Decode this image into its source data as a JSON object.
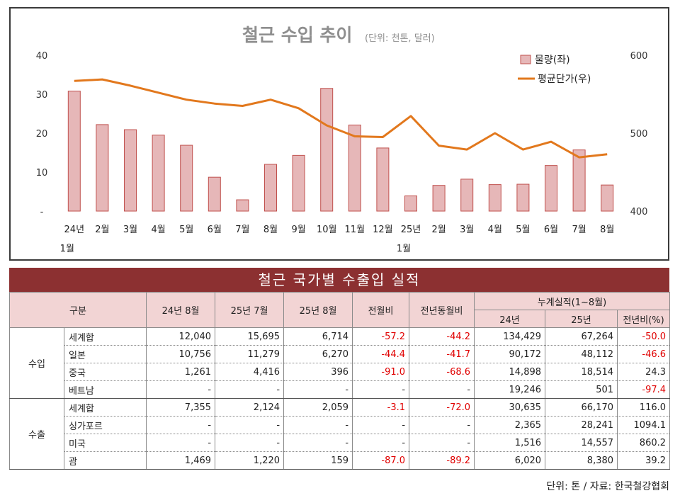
{
  "chart_data": {
    "type": "bar+line",
    "title": "철근 수입 추이",
    "subtitle": "(단위: 천톤, 달러)",
    "categories": [
      "24년\n1월",
      "2월",
      "3월",
      "4월",
      "5월",
      "6월",
      "7월",
      "8월",
      "9월",
      "10월",
      "11월",
      "12월",
      "25년\n1월",
      "2월",
      "3월",
      "4월",
      "5월",
      "6월",
      "7월",
      "8월"
    ],
    "series": [
      {
        "name": "물량(좌)",
        "type": "bar",
        "axis": "left",
        "values": [
          30.8,
          22.2,
          20.9,
          19.5,
          16.9,
          8.7,
          2.9,
          12.0,
          14.3,
          31.5,
          22.1,
          16.2,
          3.9,
          6.6,
          8.2,
          6.8,
          6.9,
          11.7,
          15.7,
          6.7
        ]
      },
      {
        "name": "평균단가(우)",
        "type": "line",
        "axis": "right",
        "values": [
          567,
          569,
          561,
          552,
          543,
          538,
          535,
          543,
          532,
          510,
          496,
          495,
          522,
          484,
          479,
          500,
          479,
          489,
          469,
          473
        ]
      }
    ],
    "y_left": {
      "range": [
        0,
        40
      ],
      "ticks": [
        "-",
        "10",
        "20",
        "30",
        "40"
      ]
    },
    "y_right": {
      "range": [
        400,
        600
      ],
      "ticks": [
        "400",
        "500",
        "600"
      ]
    },
    "legend_position": "top-right",
    "grid": false,
    "colors": {
      "bar_fill": "#e6b7b8",
      "bar_stroke": "#c0504d",
      "line": "#e2781d"
    }
  },
  "table": {
    "title": "철근 국가별 수출입 실적",
    "headers": {
      "category": "구분",
      "c1": "24년 8월",
      "c2": "25년 7월",
      "c3": "25년 8월",
      "c4": "전월비",
      "c5": "전년동월비",
      "cumulative": "누계실적(1~8월)",
      "c6": "24년",
      "c7": "25년",
      "c8": "전년비(%)"
    },
    "groups": [
      {
        "label": "수입",
        "rows": [
          {
            "name": "세계합",
            "values": [
              "12,040",
              "15,695",
              "6,714",
              "-57.2",
              "-44.2",
              "134,429",
              "67,264",
              "-50.0"
            ]
          },
          {
            "name": "일본",
            "values": [
              "10,756",
              "11,279",
              "6,270",
              "-44.4",
              "-41.7",
              "90,172",
              "48,112",
              "-46.6"
            ]
          },
          {
            "name": "중국",
            "values": [
              "1,261",
              "4,416",
              "396",
              "-91.0",
              "-68.6",
              "14,898",
              "18,514",
              "24.3"
            ]
          },
          {
            "name": "베트남",
            "values": [
              "-",
              "-",
              "-",
              "-",
              "-",
              "19,246",
              "501",
              "-97.4"
            ]
          }
        ]
      },
      {
        "label": "수출",
        "rows": [
          {
            "name": "세계합",
            "values": [
              "7,355",
              "2,124",
              "2,059",
              "-3.1",
              "-72.0",
              "30,635",
              "66,170",
              "116.0"
            ]
          },
          {
            "name": "싱가포르",
            "values": [
              "-",
              "-",
              "-",
              "-",
              "-",
              "2,365",
              "28,241",
              "1094.1"
            ]
          },
          {
            "name": "미국",
            "values": [
              "-",
              "-",
              "-",
              "-",
              "-",
              "1,516",
              "14,557",
              "860.2"
            ]
          },
          {
            "name": "괌",
            "values": [
              "1,469",
              "1,220",
              "159",
              "-87.0",
              "-89.2",
              "6,020",
              "8,380",
              "39.2"
            ]
          }
        ]
      }
    ],
    "colors": {
      "title_bg": "#8c3031",
      "header_bg": "#f2d4d4",
      "negative": "#e00000"
    }
  },
  "footnote": "단위: 톤 / 자료: 한국철강협회"
}
